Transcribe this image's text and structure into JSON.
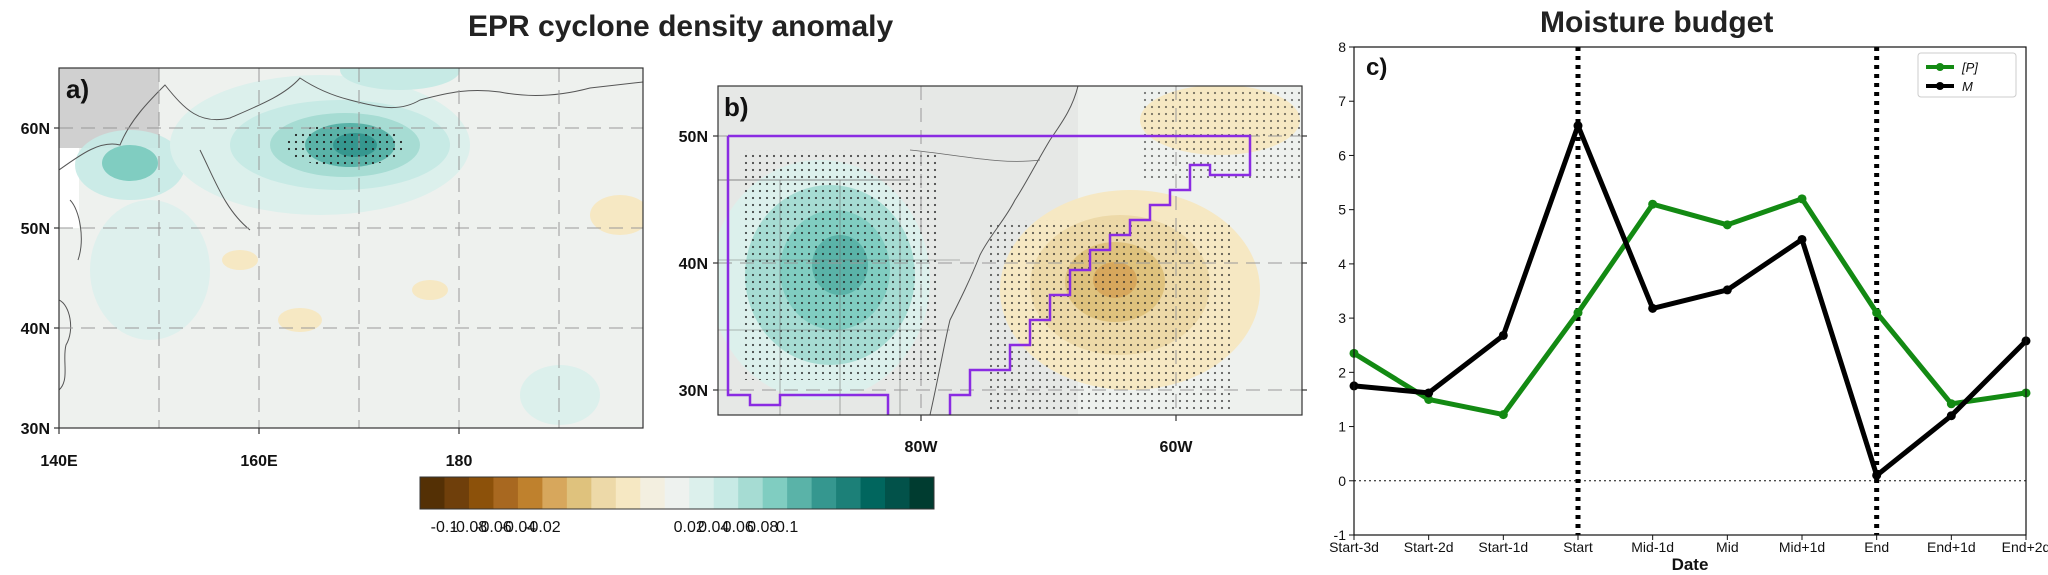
{
  "left_title": "EPR cyclone density anomaly",
  "right_title": "Moisture budget",
  "colors": {
    "ocean": "#eef1ee",
    "land": "#e6e8e6",
    "frame": "#333333",
    "outline": "#8a2be2",
    "p_series": "#138a13",
    "m_series": "#000000"
  },
  "colorbar": {
    "colors": [
      "#543005",
      "#6f3f0b",
      "#8c510a",
      "#a86820",
      "#bf812d",
      "#d7a75c",
      "#dfc27d",
      "#edd9a8",
      "#f6e8c3",
      "#f3efe0",
      "#eef2ef",
      "#dcf0ec",
      "#c7eae5",
      "#a6dcd3",
      "#80cdc1",
      "#5ab3a8",
      "#35978f",
      "#1c8078",
      "#01665e",
      "#02524a",
      "#003c30"
    ],
    "tick_labels": [
      "-0.1",
      "-0.08",
      "-0.06",
      "-0.04",
      "-0.02",
      "0.02",
      "0.04",
      "0.06",
      "0.08",
      "0.1"
    ]
  },
  "panel_a": {
    "label": "a)",
    "lat_labels": [
      "60N",
      "50N",
      "40N",
      "30N"
    ],
    "lon_labels": [
      "140E",
      "160E",
      "180"
    ]
  },
  "panel_b": {
    "label": "b)",
    "lat_labels": [
      "50N",
      "40N",
      "30N"
    ],
    "lon_labels": [
      "80W",
      "60W"
    ]
  },
  "chart_data": {
    "type": "line",
    "title": "Moisture budget",
    "panel_label": "c)",
    "xlabel": "Date",
    "ylabel": "",
    "categories": [
      "Start-3d",
      "Start-2d",
      "Start-1d",
      "Start",
      "Mid-1d",
      "Mid",
      "Mid+1d",
      "End",
      "End+1d",
      "End+2d"
    ],
    "ylim": [
      -1,
      8
    ],
    "yticks": [
      -1,
      0,
      1,
      2,
      3,
      4,
      5,
      6,
      7,
      8
    ],
    "vlines": [
      "Start",
      "End"
    ],
    "hline": 0,
    "legend_position": "top-right",
    "series": [
      {
        "name": "[P]",
        "color": "#138a13",
        "values": [
          2.35,
          1.5,
          1.22,
          3.1,
          5.1,
          4.72,
          5.2,
          3.1,
          1.42,
          1.62
        ]
      },
      {
        "name": "M",
        "color": "#000000",
        "values": [
          1.75,
          1.62,
          2.68,
          6.55,
          3.18,
          3.52,
          4.45,
          0.1,
          1.2,
          2.58
        ]
      }
    ]
  }
}
